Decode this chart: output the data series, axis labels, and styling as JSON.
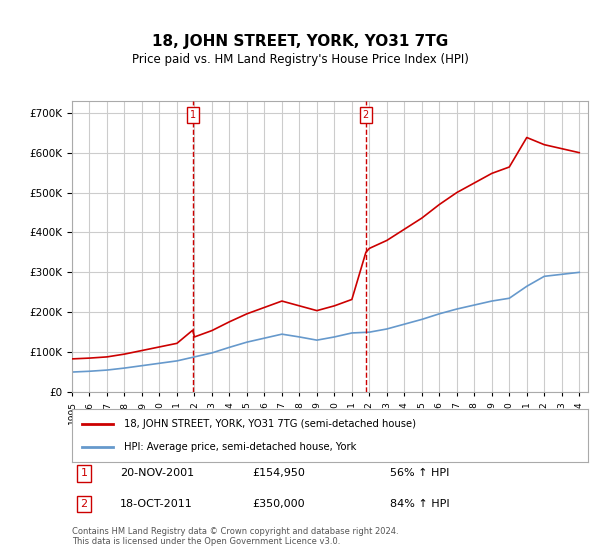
{
  "title": "18, JOHN STREET, YORK, YO31 7TG",
  "subtitle": "Price paid vs. HM Land Registry's House Price Index (HPI)",
  "footer": "Contains HM Land Registry data © Crown copyright and database right 2024.\nThis data is licensed under the Open Government Licence v3.0.",
  "legend_line1": "18, JOHN STREET, YORK, YO31 7TG (semi-detached house)",
  "legend_line2": "HPI: Average price, semi-detached house, York",
  "transaction1_label": "1",
  "transaction1_date": "20-NOV-2001",
  "transaction1_price": "£154,950",
  "transaction1_hpi": "56% ↑ HPI",
  "transaction2_label": "2",
  "transaction2_date": "18-OCT-2011",
  "transaction2_price": "£350,000",
  "transaction2_hpi": "84% ↑ HPI",
  "red_color": "#cc0000",
  "blue_color": "#6699cc",
  "background_color": "#ffffff",
  "grid_color": "#cccccc",
  "ylim": [
    0,
    730000
  ],
  "yticks": [
    0,
    100000,
    200000,
    300000,
    400000,
    500000,
    600000,
    700000
  ],
  "hpi_years": [
    1995,
    1996,
    1997,
    1998,
    1999,
    2000,
    2001,
    2002,
    2003,
    2004,
    2005,
    2006,
    2007,
    2008,
    2009,
    2010,
    2011,
    2012,
    2013,
    2014,
    2015,
    2016,
    2017,
    2018,
    2019,
    2020,
    2021,
    2022,
    2023,
    2024
  ],
  "hpi_values": [
    50000,
    52000,
    55000,
    60000,
    66000,
    72000,
    78000,
    88000,
    98000,
    112000,
    125000,
    135000,
    145000,
    138000,
    130000,
    138000,
    148000,
    150000,
    158000,
    170000,
    182000,
    196000,
    208000,
    218000,
    228000,
    235000,
    265000,
    290000,
    295000,
    300000
  ],
  "property_years": [
    2001.9,
    2011.8
  ],
  "property_values": [
    154950,
    350000
  ],
  "red_line_x": [
    1995,
    1996,
    1997,
    1998,
    1999,
    2000,
    2001,
    2001.9,
    2002,
    2003,
    2004,
    2005,
    2006,
    2007,
    2008,
    2009,
    2010,
    2011,
    2011.8,
    2012,
    2013,
    2014,
    2015,
    2016,
    2017,
    2018,
    2019,
    2020,
    2021,
    2022,
    2023,
    2024
  ],
  "red_line_y": [
    83000,
    85000,
    88000,
    95000,
    104000,
    113000,
    122000,
    154950,
    138000,
    154000,
    176000,
    196000,
    212000,
    228000,
    216000,
    204000,
    216000,
    232000,
    350000,
    360000,
    380000,
    408000,
    436000,
    470000,
    500000,
    524000,
    548000,
    564000,
    638000,
    620000,
    610000,
    600000
  ],
  "vline1_x": 2001.9,
  "vline2_x": 2011.8,
  "xmin": 1995,
  "xmax": 2024.5
}
